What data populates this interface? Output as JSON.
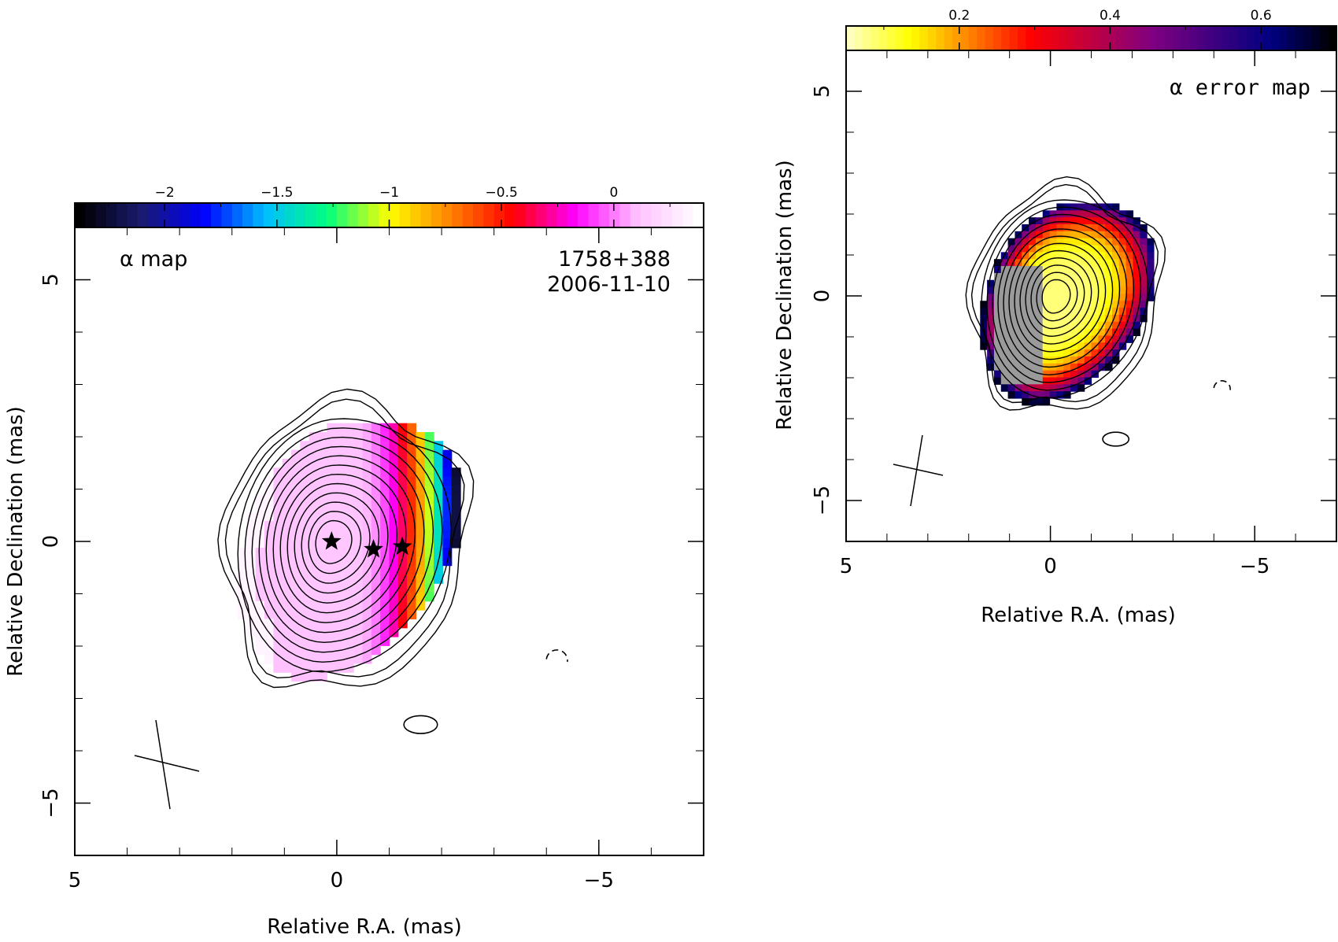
{
  "chart_data": [
    {
      "type": "heatmap",
      "title": "α map",
      "source_name": "1758+388",
      "date": "2006-11-10",
      "xlabel": "Relative R.A. (mas)",
      "ylabel": "Relative Declination (mas)",
      "xlim": [
        5,
        -7
      ],
      "ylim": [
        -6,
        6
      ],
      "xticks": [
        5,
        0,
        -5
      ],
      "yticks": [
        -5,
        0,
        5
      ],
      "xtick_labels": [
        "5",
        "0",
        "−5"
      ],
      "ytick_labels": [
        "−5",
        "0",
        "5"
      ],
      "colorbar": {
        "range": [
          -2.4,
          0.4
        ],
        "ticks": [
          -2,
          -1.5,
          -1,
          -0.5,
          0
        ],
        "tick_labels": [
          "−2",
          "−1.5",
          "−1",
          "−0.5",
          "0"
        ],
        "colormap": [
          "#000000",
          "#1a1a70",
          "#0000ff",
          "#00bfff",
          "#00ff80",
          "#ffff00",
          "#ff8000",
          "#ff0000",
          "#ff00ff",
          "#ffc0ff",
          "#ffffff"
        ]
      },
      "markers": [
        {
          "symbol": "star",
          "x": 0.1,
          "y": 0.0
        },
        {
          "symbol": "star",
          "x": -0.7,
          "y": -0.15
        },
        {
          "symbol": "star",
          "x": -1.25,
          "y": -0.1
        }
      ],
      "contour_center": [
        0.1,
        0.0
      ],
      "beam_marker": "cross, lower-left"
    },
    {
      "type": "heatmap",
      "title": "α error map",
      "xlabel": "Relative R.A. (mas)",
      "ylabel": "Relative Declination (mas)",
      "xlim": [
        5,
        -7
      ],
      "ylim": [
        -6,
        6
      ],
      "xticks": [
        5,
        0,
        -5
      ],
      "yticks": [
        -5,
        0,
        5
      ],
      "xtick_labels": [
        "5",
        "0",
        "−5"
      ],
      "ytick_labels": [
        "−5",
        "0",
        "5"
      ],
      "colorbar": {
        "range": [
          0.05,
          0.7
        ],
        "ticks": [
          0.2,
          0.4,
          0.6
        ],
        "tick_labels": [
          "0.2",
          "0.4",
          "0.6"
        ],
        "colormap": [
          "#ffffc0",
          "#ffff00",
          "#ff8000",
          "#ff0000",
          "#c00040",
          "#800080",
          "#400080",
          "#000080",
          "#000000"
        ]
      },
      "contour_center": [
        -0.1,
        0.0
      ],
      "beam_marker": "cross, lower-left"
    }
  ]
}
